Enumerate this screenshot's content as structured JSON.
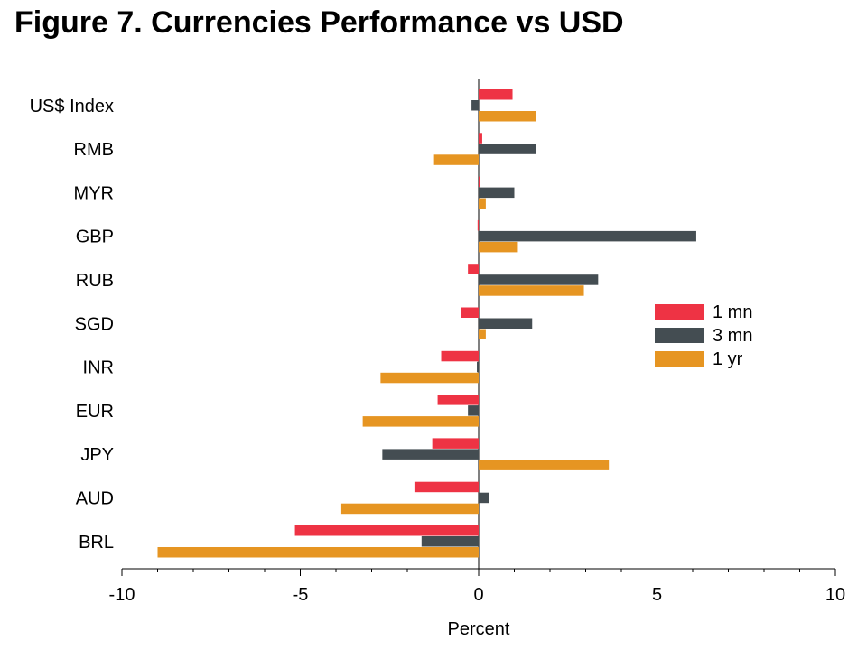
{
  "title": "Figure 7. Currencies Performance vs USD",
  "chart_data": {
    "type": "bar",
    "orientation": "horizontal",
    "categories": [
      "US$ Index",
      "RMB",
      "MYR",
      "GBP",
      "RUB",
      "SGD",
      "INR",
      "EUR",
      "JPY",
      "AUD",
      "BRL"
    ],
    "series": [
      {
        "name": "1 mn",
        "color": "#ee3344",
        "values": [
          0.95,
          0.1,
          0.05,
          -0.03,
          -0.3,
          -0.5,
          -1.05,
          -1.15,
          -1.3,
          -1.8,
          -5.15
        ]
      },
      {
        "name": "3 mn",
        "color": "#444d52",
        "values": [
          -0.2,
          1.6,
          1.0,
          6.1,
          3.35,
          1.5,
          -0.05,
          -0.3,
          -2.7,
          0.3,
          -1.6
        ]
      },
      {
        "name": "1 yr",
        "color": "#e69522",
        "values": [
          1.6,
          -1.25,
          0.2,
          1.1,
          2.95,
          0.2,
          -2.75,
          -3.25,
          3.65,
          -3.85,
          -9.0
        ]
      }
    ],
    "xlabel": "Percent",
    "ylabel": "",
    "xlim": [
      -10,
      10
    ],
    "xticks": [
      -10,
      -5,
      0,
      5,
      10
    ],
    "xtick_labels": [
      "-10",
      "-5",
      "0",
      "5",
      "10"
    ],
    "grid": false,
    "legend_position": "right"
  }
}
